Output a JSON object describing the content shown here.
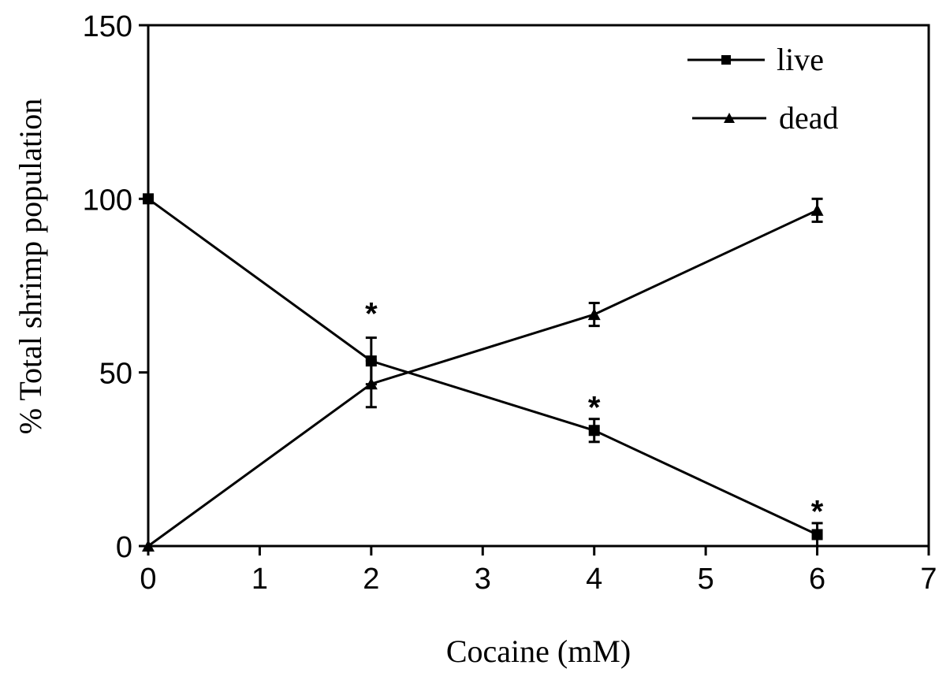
{
  "chart_data": {
    "type": "line",
    "title": "",
    "xlabel": "Cocaine (mM)",
    "ylabel": "% Total shrimp population",
    "xlim": [
      0,
      7
    ],
    "ylim": [
      0,
      150
    ],
    "xticks": [
      "0",
      "1",
      "2",
      "3",
      "4",
      "5",
      "6",
      "7"
    ],
    "yticks": [
      "0",
      "50",
      "100",
      "150"
    ],
    "grid": false,
    "legend_position": "top-right",
    "series": [
      {
        "name": "live",
        "marker": "square",
        "x": [
          0,
          2,
          4,
          6
        ],
        "y": [
          100,
          53.3,
          33.3,
          3.3
        ],
        "error": [
          0,
          6.7,
          3.3,
          3.3
        ]
      },
      {
        "name": "dead",
        "marker": "triangle",
        "x": [
          0,
          2,
          4,
          6
        ],
        "y": [
          0,
          46.7,
          66.7,
          96.7
        ],
        "error": [
          0,
          6.7,
          3.3,
          3.3
        ]
      }
    ],
    "annotations": [
      {
        "text": "*",
        "x": 2,
        "y": 68
      },
      {
        "text": "*",
        "x": 4,
        "y": 41
      },
      {
        "text": "*",
        "x": 6,
        "y": 11
      }
    ]
  }
}
